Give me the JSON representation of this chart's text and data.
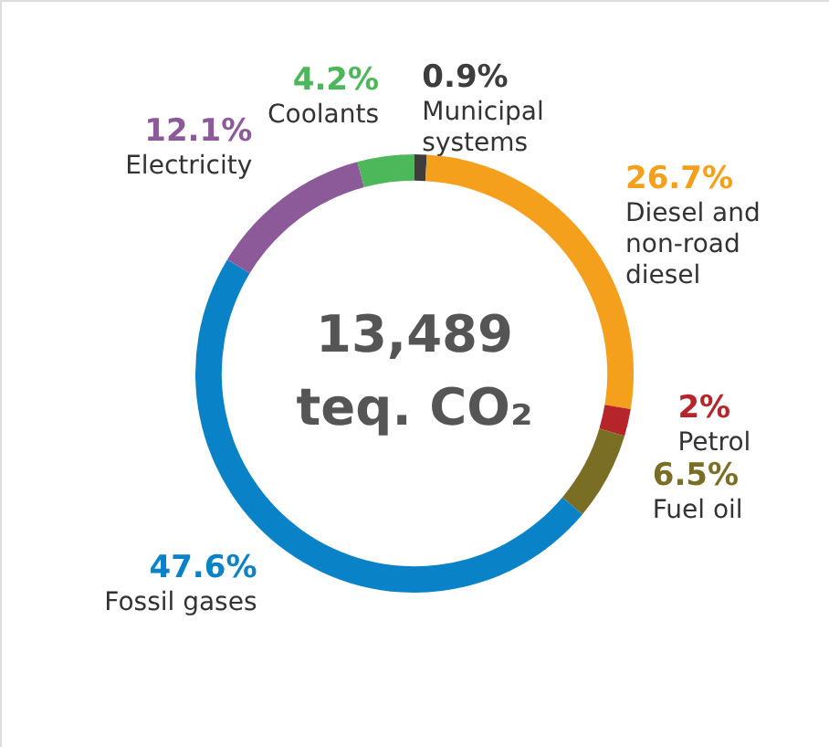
{
  "chart_data": {
    "type": "donut",
    "categories": [
      "Municipal systems",
      "Diesel and non-road diesel",
      "Petrol",
      "Fuel oil",
      "Fossil gases",
      "Electricity",
      "Coolants"
    ],
    "values": [
      0.9,
      26.7,
      2,
      6.5,
      47.6,
      12.1,
      4.2
    ],
    "value_labels": [
      "0.9%",
      "26.7%",
      "2%",
      "6.5%",
      "47.6%",
      "12.1%",
      "4.2%"
    ],
    "colors": [
      "#3d3d3d",
      "#f5a01c",
      "#b5252a",
      "#7a6e25",
      "#0a82c8",
      "#8d5a99",
      "#4db85a"
    ],
    "annotations": [
      "13,489",
      "teq. CO₂"
    ]
  }
}
